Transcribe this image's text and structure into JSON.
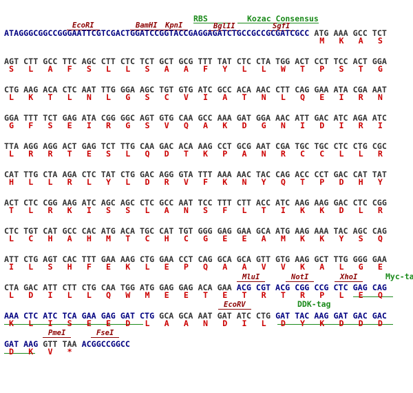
{
  "annotations": {
    "rbs": "RBS",
    "kozak": "Kozac Consensus",
    "ecori": "EcoRI",
    "bamhi": "BamHI",
    "kpni": "KpnI",
    "bglii": "BglII",
    "sgfi": "SgfI",
    "mlui": "MluI",
    "noti": "NotI",
    "xhoi": "XhoI",
    "myc": "Myc-tag",
    "ecorv": "EcoRV",
    "ddk": "DDK-tag",
    "pmei": "PmeI",
    "fsei": "FseI"
  },
  "rows": [
    {
      "dna": [
        {
          "text": "ATAGGGCGGCCGGGAATTCGTCGACTGGATCCGGTACCGAGGAGATCTGCCGCCGCGATCGCC ",
          "color": "#000080"
        },
        {
          "text": "ATG AAA GCC TCT",
          "color": "#333333"
        }
      ],
      "protein": [
        "M",
        "K",
        "A",
        "S"
      ]
    },
    {
      "dna": [
        {
          "text": "AGT CTT GCC TTC AGC CTT CTC TCT GCT GCG TTT TAT CTC CTA TGG ACT CCT TCC ACT GGA",
          "color": "#333333"
        }
      ],
      "protein": [
        "S",
        "L",
        "A",
        "F",
        "S",
        "L",
        "L",
        "S",
        "A",
        "A",
        "F",
        "Y",
        "L",
        "L",
        "W",
        "T",
        "P",
        "S",
        "T",
        "G"
      ]
    },
    {
      "dna": [
        {
          "text": "CTG AAG ACA CTC AAT TTG GGA AGC TGT GTG ATC GCC ACA AAC CTT CAG GAA ATA CGA AAT",
          "color": "#333333"
        }
      ],
      "protein": [
        "L",
        "K",
        "T",
        "L",
        "N",
        "L",
        "G",
        "S",
        "C",
        "V",
        "I",
        "A",
        "T",
        "N",
        "L",
        "Q",
        "E",
        "I",
        "R",
        "N"
      ]
    },
    {
      "dna": [
        {
          "text": "GGA TTT TCT GAG ATA CGG GGC AGT GTG CAA GCC AAA GAT GGA AAC ATT GAC ATC AGA ATC",
          "color": "#333333"
        }
      ],
      "protein": [
        "G",
        "F",
        "S",
        "E",
        "I",
        "R",
        "G",
        "S",
        "V",
        "Q",
        "A",
        "K",
        "D",
        "G",
        "N",
        "I",
        "D",
        "I",
        "R",
        "I"
      ]
    },
    {
      "dna": [
        {
          "text": "TTA AGG AGG ACT GAG TCT TTG CAA GAC ACA AAG CCT GCG AAT CGA TGC TGC CTC CTG CGC",
          "color": "#333333"
        }
      ],
      "protein": [
        "L",
        "R",
        "R",
        "T",
        "E",
        "S",
        "L",
        "Q",
        "D",
        "T",
        "K",
        "P",
        "A",
        "N",
        "R",
        "C",
        "C",
        "L",
        "L",
        "R"
      ]
    },
    {
      "dna": [
        {
          "text": "CAT TTG CTA AGA CTC TAT CTG GAC AGG GTA TTT AAA AAC TAC CAG ACC CCT GAC CAT TAT",
          "color": "#333333"
        }
      ],
      "protein": [
        "H",
        "L",
        "L",
        "R",
        "L",
        "Y",
        "L",
        "D",
        "R",
        "V",
        "F",
        "K",
        "N",
        "Y",
        "Q",
        "T",
        "P",
        "D",
        "H",
        "Y"
      ]
    },
    {
      "dna": [
        {
          "text": "ACT CTC CGG AAG ATC AGC AGC CTC GCC AAT TCC TTT CTT ACC ATC AAG AAG GAC CTC CGG",
          "color": "#333333"
        }
      ],
      "protein": [
        "T",
        "L",
        "R",
        "K",
        "I",
        "S",
        "S",
        "L",
        "A",
        "N",
        "S",
        "F",
        "L",
        "T",
        "I",
        "K",
        "K",
        "D",
        "L",
        "R"
      ]
    },
    {
      "dna": [
        {
          "text": "CTC TGT CAT GCC CAC ATG ACA TGC CAT TGT GGG GAG GAA GCA ATG AAG AAA TAC AGC CAG",
          "color": "#333333"
        }
      ],
      "protein": [
        "L",
        "C",
        "H",
        "A",
        "H",
        "M",
        "T",
        "C",
        "H",
        "C",
        "G",
        "E",
        "E",
        "A",
        "M",
        "K",
        "K",
        "Y",
        "S",
        "Q"
      ]
    },
    {
      "dna": [
        {
          "text": "ATT CTG AGT CAC TTT GAA AAG CTG GAA CCT CAG GCA GCA GTT GTG AAG GCT TTG GGG GAA",
          "color": "#333333"
        }
      ],
      "protein": [
        "I",
        "L",
        "S",
        "H",
        "F",
        "E",
        "K",
        "L",
        "E",
        "P",
        "Q",
        "A",
        "A",
        "V",
        "V",
        "K",
        "A",
        "L",
        "G",
        "E"
      ]
    },
    {
      "dna": [
        {
          "text": "CTA GAC ATT CTT CTG CAA TGG ATG GAG GAG ACA GAA ",
          "color": "#333333"
        },
        {
          "text": "ACG CGT ACG CGG CCG CTC GAG CAG",
          "color": "#000080"
        }
      ],
      "protein": [
        "L",
        "D",
        "I",
        "L",
        "L",
        "Q",
        "W",
        "M",
        "E",
        "E",
        "T",
        "E",
        "T",
        "R",
        "T",
        "R",
        "P",
        "L",
        "E",
        "Q"
      ]
    },
    {
      "dna": [
        {
          "text": "AAA CTC ATC TCA GAA GAG GAT CTG ",
          "color": "#000080"
        },
        {
          "text": "GCA GCA AAT GAT ATC CTG ",
          "color": "#333333"
        },
        {
          "text": "GAT TAC AAG GAT GAC GAC",
          "color": "#000080"
        }
      ],
      "protein": [
        "K",
        "L",
        "I",
        "S",
        "E",
        "E",
        "D",
        "L",
        "A",
        "A",
        "N",
        "D",
        "I",
        "L",
        "D",
        "Y",
        "K",
        "D",
        "D",
        "D"
      ]
    },
    {
      "dna": [
        {
          "text": "GAT AAG ",
          "color": "#000080"
        },
        {
          "text": "GTT TAA ",
          "color": "#333333"
        },
        {
          "text": "ACGGCCGGCC",
          "color": "#000080"
        }
      ],
      "protein": [
        "D",
        "K",
        "V",
        "*"
      ]
    }
  ]
}
